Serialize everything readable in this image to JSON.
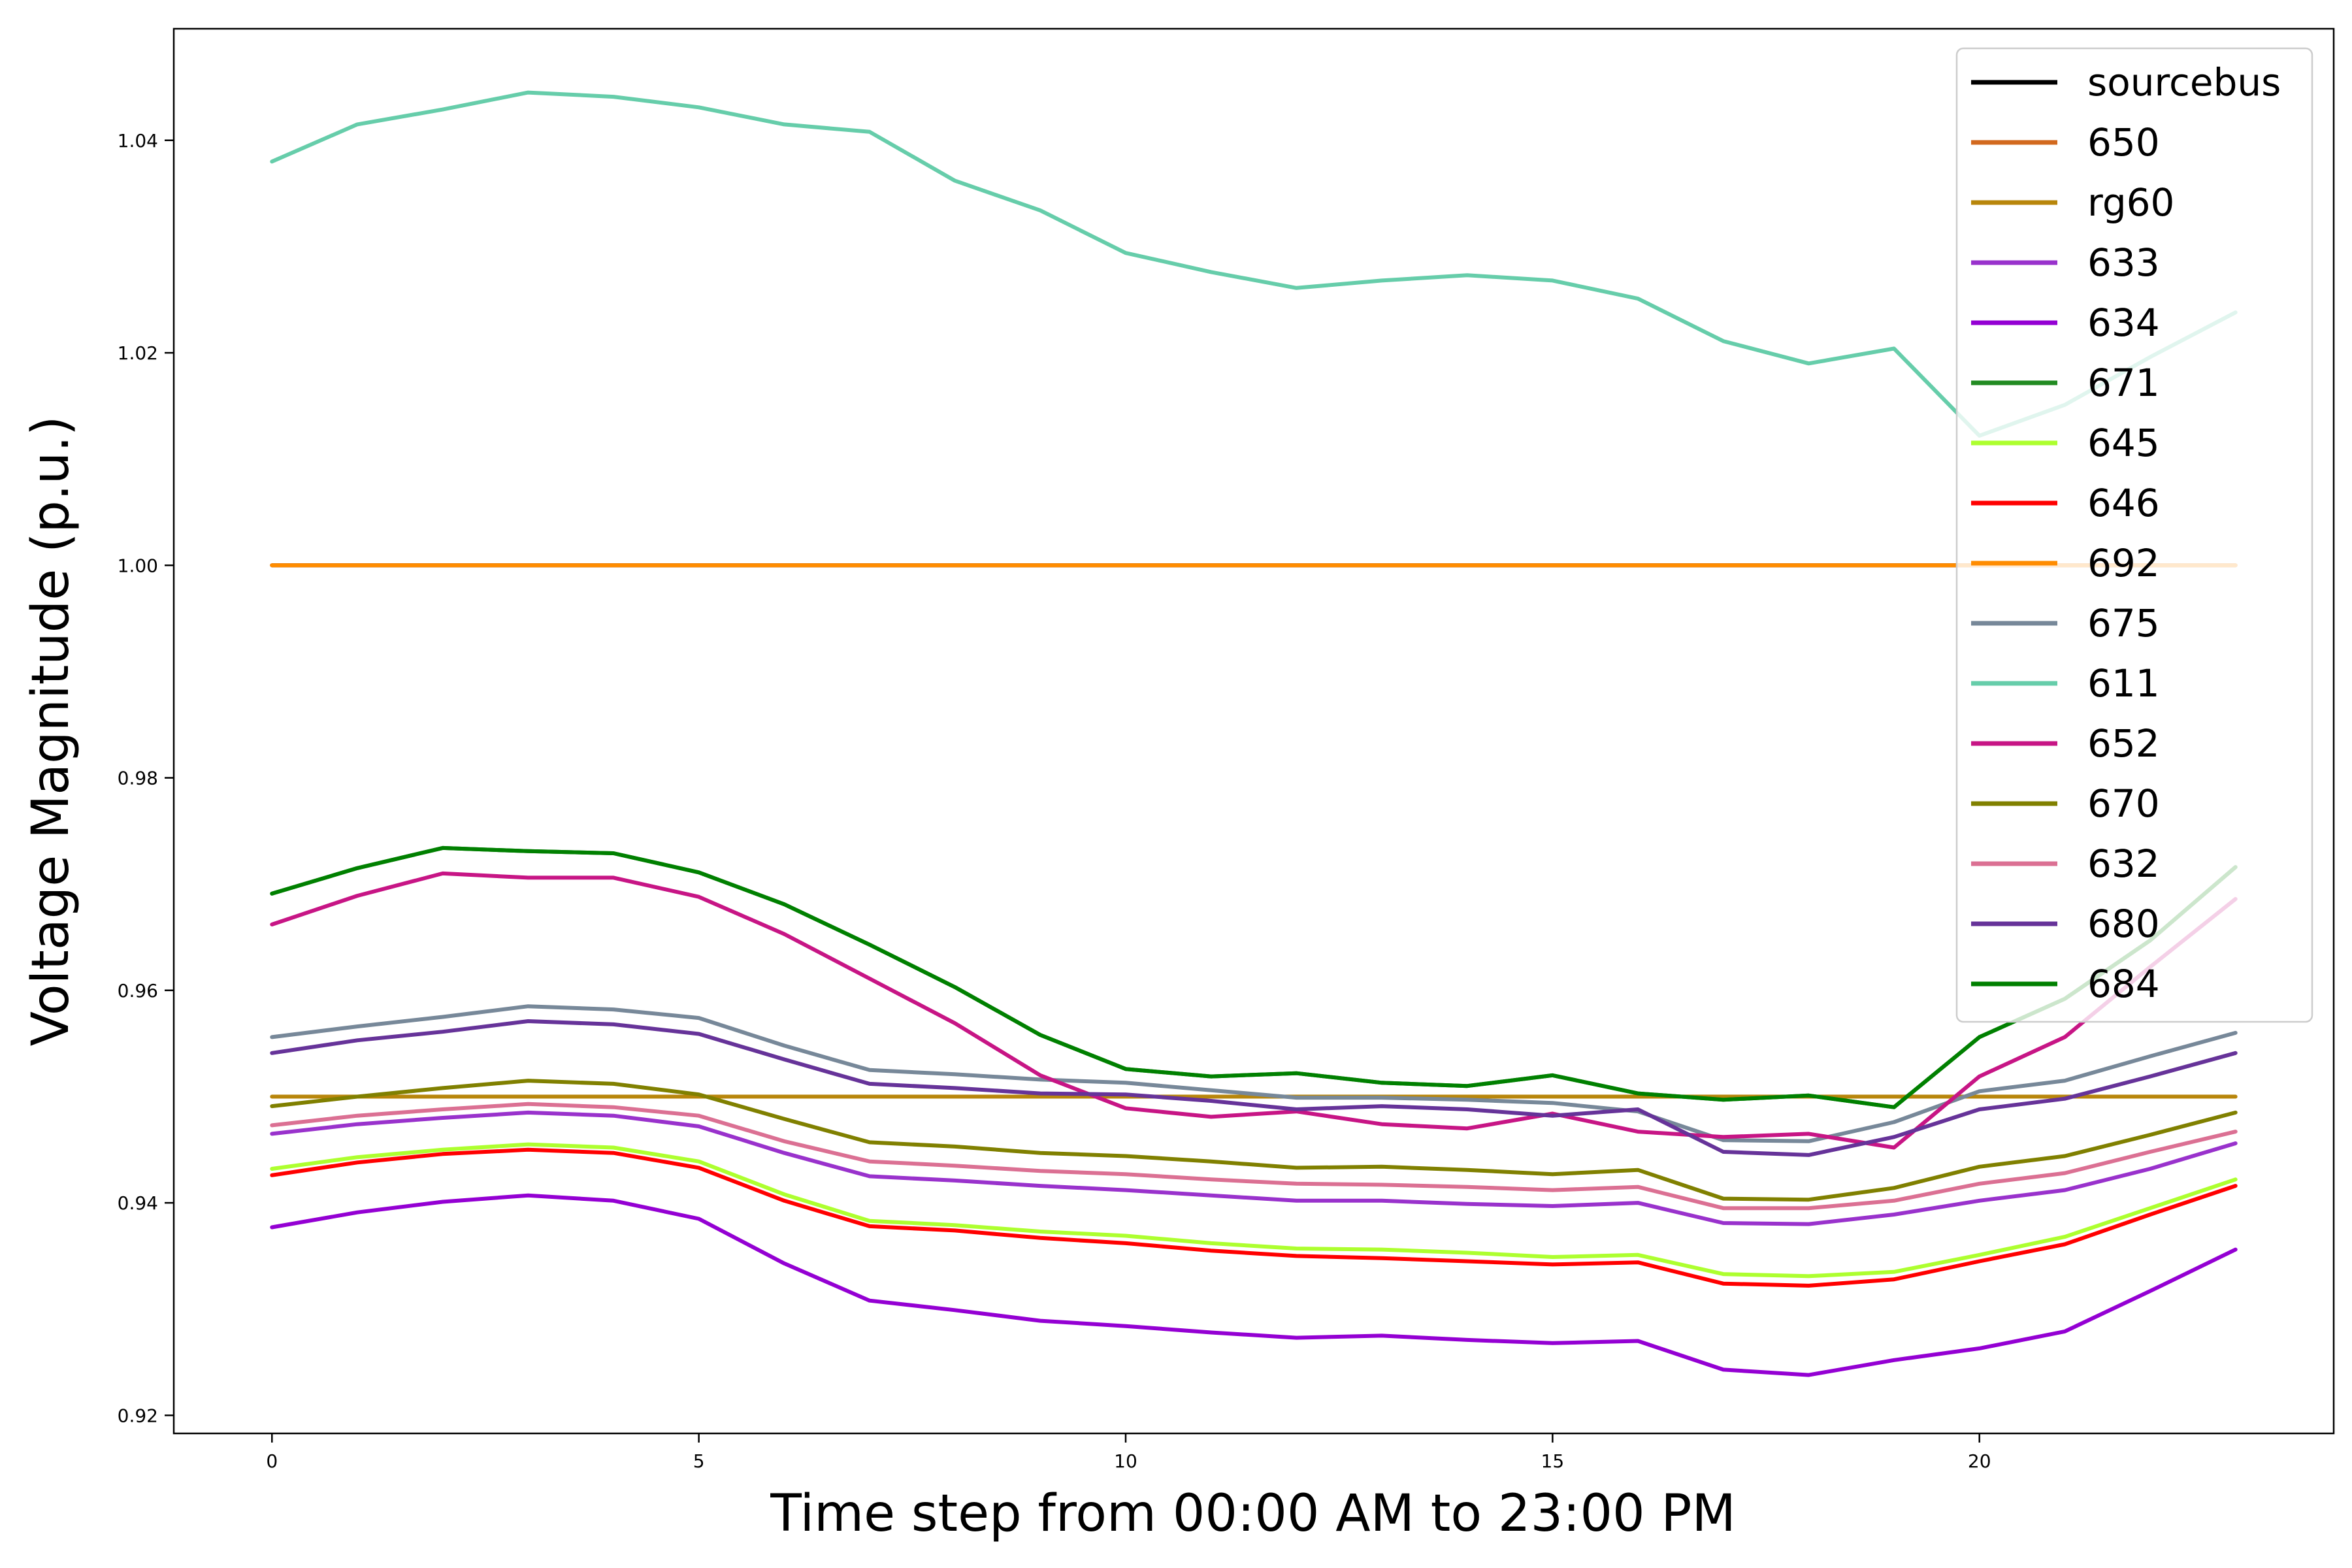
{
  "chart_data": {
    "type": "line",
    "title": "",
    "xlabel": "Time step from 00:00 AM to 23:00 PM",
    "ylabel": "Voltage Magnitude (p.u.)",
    "xlim": [
      -1.15,
      24.15
    ],
    "ylim": [
      0.9183,
      1.0505
    ],
    "xticks": [
      0,
      5,
      10,
      15,
      20
    ],
    "yticks": [
      0.92,
      0.94,
      0.96,
      0.98,
      1.0,
      1.02,
      1.04
    ],
    "ytick_labels": [
      "0.92",
      "0.94",
      "0.96",
      "0.98",
      "1.00",
      "1.02",
      "1.04"
    ],
    "grid": false,
    "legend_position": "top-right",
    "x": [
      0,
      1,
      2,
      3,
      4,
      5,
      6,
      7,
      8,
      9,
      10,
      11,
      12,
      13,
      14,
      15,
      16,
      17,
      18,
      19,
      20,
      21,
      22,
      23
    ],
    "series": [
      {
        "name": "sourcebus",
        "color": "#000000",
        "values": [
          1.0,
          1.0,
          1.0,
          1.0,
          1.0,
          1.0,
          1.0,
          1.0,
          1.0,
          1.0,
          1.0,
          1.0,
          1.0,
          1.0,
          1.0,
          1.0,
          1.0,
          1.0,
          1.0,
          1.0,
          1.0,
          1.0,
          1.0,
          1.0
        ]
      },
      {
        "name": "650",
        "color": "#d2691e",
        "values": [
          1.0,
          1.0,
          1.0,
          1.0,
          1.0,
          1.0,
          1.0,
          1.0,
          1.0,
          1.0,
          1.0,
          1.0,
          1.0,
          1.0,
          1.0,
          1.0,
          1.0,
          1.0,
          1.0,
          1.0,
          1.0,
          1.0,
          1.0,
          1.0
        ]
      },
      {
        "name": "rg60",
        "color": "#b8860b",
        "values": [
          0.95,
          0.95,
          0.95,
          0.95,
          0.95,
          0.95,
          0.95,
          0.95,
          0.95,
          0.95,
          0.95,
          0.95,
          0.95,
          0.95,
          0.95,
          0.95,
          0.95,
          0.95,
          0.95,
          0.95,
          0.95,
          0.95,
          0.95,
          0.95
        ]
      },
      {
        "name": "633",
        "color": "#9932cc",
        "values": [
          0.9465,
          0.9474,
          0.948,
          0.9485,
          0.9482,
          0.9472,
          0.9447,
          0.9425,
          0.9421,
          0.9416,
          0.9412,
          0.9407,
          0.9402,
          0.9402,
          0.9399,
          0.9397,
          0.94,
          0.9381,
          0.938,
          0.9389,
          0.9402,
          0.9412,
          0.9432,
          0.9456
        ]
      },
      {
        "name": "634",
        "color": "#9400d3",
        "values": [
          0.9377,
          0.9391,
          0.9401,
          0.9407,
          0.9402,
          0.9385,
          0.9343,
          0.9308,
          0.9299,
          0.9289,
          0.9284,
          0.9278,
          0.9273,
          0.9275,
          0.9271,
          0.9268,
          0.927,
          0.9243,
          0.9238,
          0.9252,
          0.9263,
          0.9279,
          0.9317,
          0.9356
        ]
      },
      {
        "name": "671",
        "color": "#228b22",
        "values": [
          0.9691,
          0.9715,
          0.9734,
          0.9731,
          0.9729,
          0.9711,
          0.9681,
          0.9643,
          0.9603,
          0.9558,
          0.9526,
          0.9519,
          0.9522,
          0.9513,
          0.951,
          0.952,
          0.9503,
          0.9497,
          0.9501,
          0.949,
          0.9556,
          0.9592,
          0.9647,
          0.9716
        ]
      },
      {
        "name": "645",
        "color": "#adff2f",
        "values": [
          0.9432,
          0.9443,
          0.945,
          0.9455,
          0.9452,
          0.9439,
          0.9408,
          0.9383,
          0.9379,
          0.9373,
          0.9369,
          0.9362,
          0.9357,
          0.9356,
          0.9353,
          0.9349,
          0.9351,
          0.9333,
          0.9331,
          0.9335,
          0.9351,
          0.9368,
          0.9395,
          0.9422
        ]
      },
      {
        "name": "646",
        "color": "#ff0000",
        "values": [
          0.9426,
          0.9438,
          0.9446,
          0.945,
          0.9447,
          0.9433,
          0.9402,
          0.9378,
          0.9374,
          0.9367,
          0.9362,
          0.9355,
          0.935,
          0.9348,
          0.9345,
          0.9342,
          0.9344,
          0.9324,
          0.9322,
          0.9328,
          0.9345,
          0.9361,
          0.9389,
          0.9416
        ]
      },
      {
        "name": "692",
        "color": "#ff8c00",
        "values": [
          1.0,
          1.0,
          1.0,
          1.0,
          1.0,
          1.0,
          1.0,
          1.0,
          1.0,
          1.0,
          1.0,
          1.0,
          1.0,
          1.0,
          1.0,
          1.0,
          1.0,
          1.0,
          1.0,
          1.0,
          1.0,
          1.0,
          1.0,
          1.0
        ]
      },
      {
        "name": "675",
        "color": "#778899",
        "values": [
          0.9556,
          0.9566,
          0.9575,
          0.9585,
          0.9582,
          0.9574,
          0.9548,
          0.9525,
          0.9521,
          0.9516,
          0.9513,
          0.9506,
          0.9499,
          0.9499,
          0.9497,
          0.9494,
          0.9486,
          0.9459,
          0.9458,
          0.9476,
          0.9505,
          0.9515,
          0.9538,
          0.956
        ]
      },
      {
        "name": "611",
        "color": "#66cdaa",
        "values": [
          1.038,
          1.0415,
          1.0429,
          1.0445,
          1.0441,
          1.0431,
          1.0415,
          1.0408,
          1.0362,
          1.0334,
          1.0294,
          1.0276,
          1.0261,
          1.0268,
          1.0273,
          1.0268,
          1.0251,
          1.0211,
          1.019,
          1.0204,
          1.0122,
          1.0151,
          1.0196,
          1.0238
        ]
      },
      {
        "name": "652",
        "color": "#c71585",
        "values": [
          0.9662,
          0.9689,
          0.971,
          0.9706,
          0.9706,
          0.9688,
          0.9653,
          0.9611,
          0.9569,
          0.952,
          0.9489,
          0.9481,
          0.9486,
          0.9474,
          0.947,
          0.9484,
          0.9467,
          0.9462,
          0.9465,
          0.9452,
          0.9519,
          0.9556,
          0.9622,
          0.9686
        ]
      },
      {
        "name": "670",
        "color": "#808000",
        "values": [
          0.9491,
          0.95,
          0.9508,
          0.9515,
          0.9512,
          0.9502,
          0.9479,
          0.9457,
          0.9453,
          0.9447,
          0.9444,
          0.9439,
          0.9433,
          0.9434,
          0.9431,
          0.9427,
          0.9431,
          0.9404,
          0.9403,
          0.9414,
          0.9434,
          0.9444,
          0.9464,
          0.9485
        ]
      },
      {
        "name": "632",
        "color": "#db7093",
        "values": [
          0.9473,
          0.9482,
          0.9488,
          0.9493,
          0.949,
          0.9482,
          0.9458,
          0.9439,
          0.9435,
          0.943,
          0.9427,
          0.9422,
          0.9418,
          0.9417,
          0.9415,
          0.9412,
          0.9415,
          0.9395,
          0.9395,
          0.9402,
          0.9418,
          0.9428,
          0.9448,
          0.9467
        ]
      },
      {
        "name": "680",
        "color": "#663399",
        "values": [
          0.9541,
          0.9553,
          0.9561,
          0.9571,
          0.9568,
          0.9559,
          0.9535,
          0.9512,
          0.9508,
          0.9503,
          0.9502,
          0.9496,
          0.9488,
          0.9491,
          0.9488,
          0.9482,
          0.9488,
          0.9448,
          0.9445,
          0.9462,
          0.9488,
          0.9498,
          0.9519,
          0.9541
        ]
      },
      {
        "name": "684",
        "color": "#008000",
        "values": [
          0.9691,
          0.9715,
          0.9734,
          0.9731,
          0.9729,
          0.9711,
          0.9681,
          0.9643,
          0.9603,
          0.9558,
          0.9526,
          0.9519,
          0.9522,
          0.9513,
          0.951,
          0.952,
          0.9503,
          0.9497,
          0.9501,
          0.949,
          0.9556,
          0.9592,
          0.9647,
          0.9716
        ]
      }
    ]
  }
}
